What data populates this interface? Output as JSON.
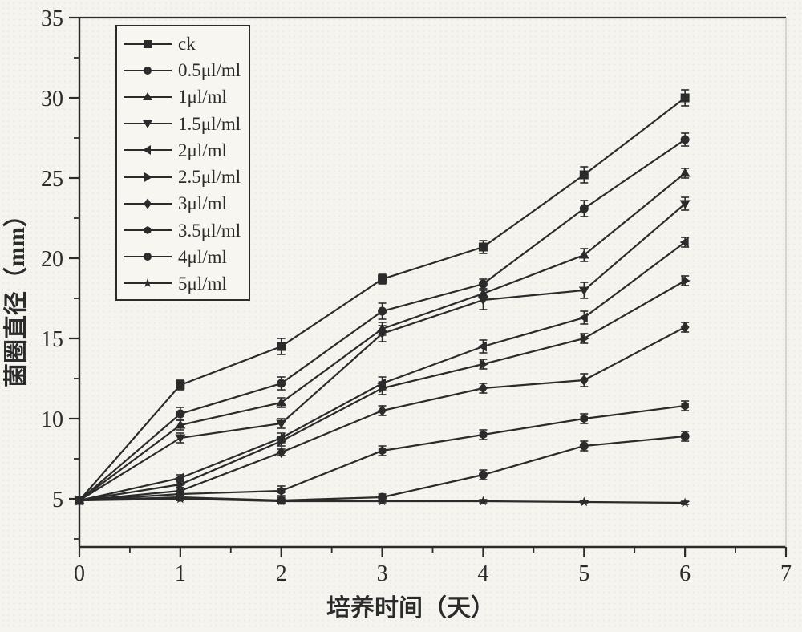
{
  "figure": {
    "background": "#f5f4ef",
    "ink": "#2b2b2b",
    "faded_edge": "#c9c7c0"
  },
  "chart_data": {
    "type": "line",
    "title": "",
    "xlabel": "培养时间（天）",
    "ylabel": "菌圈直径（mm）",
    "x": [
      0,
      1,
      2,
      3,
      4,
      5,
      6
    ],
    "xticks": [
      0,
      1,
      2,
      3,
      4,
      5,
      6,
      7
    ],
    "yticks": [
      5,
      10,
      15,
      20,
      25,
      30,
      35
    ],
    "xminor": [
      0.5,
      1.5,
      2.5,
      3.5,
      4.5,
      5.5,
      6.5
    ],
    "yminor": [
      2.5,
      7.5,
      12.5,
      17.5,
      22.5,
      27.5,
      32.5
    ],
    "xlim": [
      0,
      7
    ],
    "ylim": [
      2,
      35
    ],
    "grid": false,
    "legend_position": "top-left",
    "series": [
      {
        "name": "ck",
        "marker": "square",
        "values": [
          4.9,
          12.1,
          14.5,
          18.7,
          20.7,
          25.2,
          30.0
        ],
        "errors": [
          0,
          0.3,
          0.5,
          0.3,
          0.4,
          0.5,
          0.5
        ]
      },
      {
        "name": "0.5μl/ml",
        "marker": "circle",
        "values": [
          4.9,
          10.3,
          12.2,
          16.7,
          18.4,
          23.1,
          27.4
        ],
        "errors": [
          0,
          0.4,
          0.4,
          0.5,
          0.3,
          0.5,
          0.4
        ]
      },
      {
        "name": "1μl/ml",
        "marker": "triangle-up",
        "values": [
          4.9,
          9.6,
          11.0,
          15.6,
          17.8,
          20.2,
          25.3
        ],
        "errors": [
          0,
          0.3,
          0.3,
          0.4,
          0.3,
          0.4,
          0.3
        ]
      },
      {
        "name": "1.5μl/ml",
        "marker": "triangle-down",
        "values": [
          4.9,
          8.8,
          9.7,
          15.3,
          17.4,
          18.0,
          23.4
        ],
        "errors": [
          0,
          0.3,
          0.3,
          0.5,
          0.6,
          0.5,
          0.4
        ]
      },
      {
        "name": "2μl/ml",
        "marker": "triangle-left",
        "values": [
          4.9,
          6.3,
          8.8,
          12.2,
          14.5,
          16.3,
          21.0
        ],
        "errors": [
          0,
          0.2,
          0.3,
          0.4,
          0.4,
          0.4,
          0.3
        ]
      },
      {
        "name": "2.5μl/ml",
        "marker": "triangle-right",
        "values": [
          4.9,
          5.9,
          8.6,
          11.9,
          13.4,
          15.0,
          18.6
        ],
        "errors": [
          0,
          0.2,
          0.3,
          0.4,
          0.3,
          0.3,
          0.3
        ]
      },
      {
        "name": "3μl/ml",
        "marker": "diamond",
        "values": [
          4.9,
          5.5,
          7.9,
          10.5,
          11.9,
          12.4,
          15.7
        ],
        "errors": [
          0,
          0.2,
          0.2,
          0.3,
          0.3,
          0.4,
          0.3
        ]
      },
      {
        "name": "3.5μl/ml",
        "marker": "hexagon",
        "values": [
          4.9,
          5.3,
          5.5,
          8.0,
          9.0,
          10.0,
          10.8
        ],
        "errors": [
          0,
          0.2,
          0.3,
          0.3,
          0.3,
          0.3,
          0.3
        ]
      },
      {
        "name": "4μl/ml",
        "marker": "circle",
        "values": [
          4.9,
          5.1,
          4.9,
          5.1,
          6.5,
          8.3,
          8.9
        ],
        "errors": [
          0,
          0.2,
          0.2,
          0.2,
          0.3,
          0.3,
          0.3
        ]
      },
      {
        "name": "5μl/ml",
        "marker": "star",
        "values": [
          4.9,
          5.0,
          4.85,
          4.85,
          4.85,
          4.8,
          4.75
        ],
        "errors": [
          0,
          0.1,
          0.1,
          0.1,
          0.1,
          0.1,
          0.1
        ]
      }
    ]
  }
}
